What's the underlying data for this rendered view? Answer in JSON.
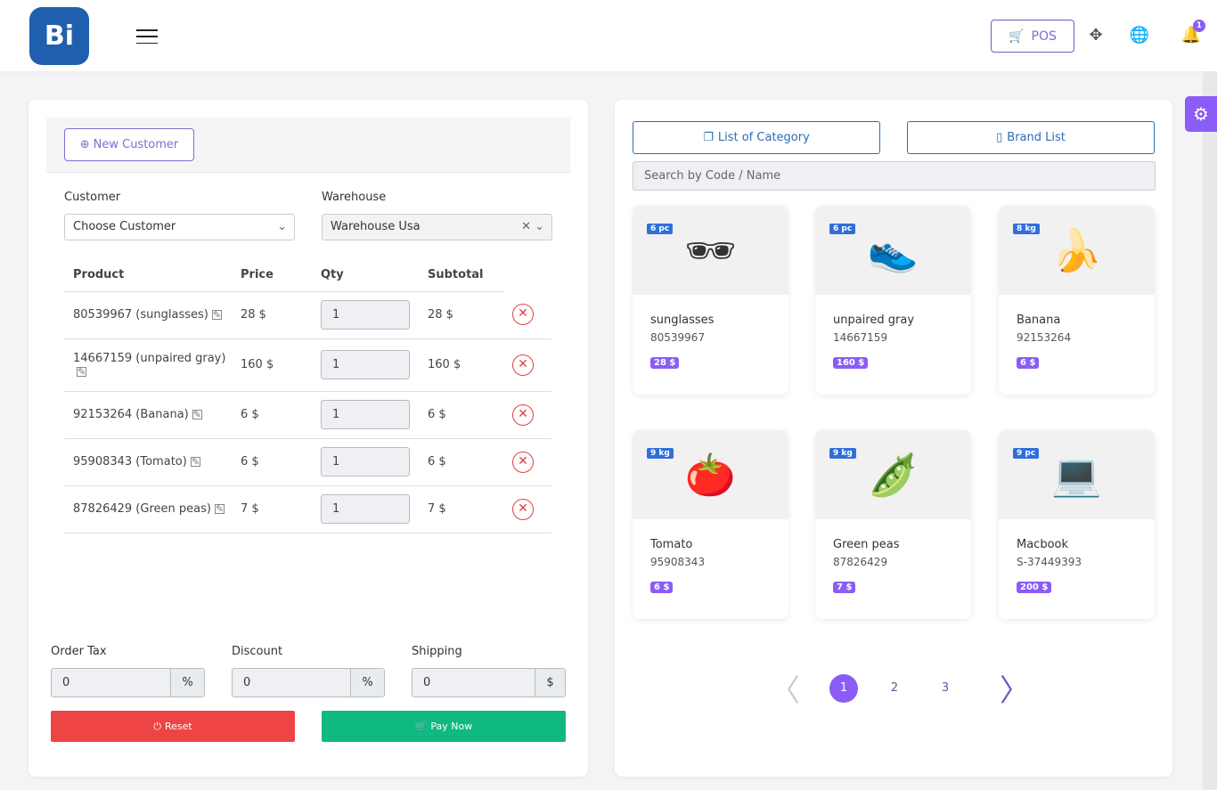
{
  "header": {
    "logo": "Bi",
    "pos_label": "POS",
    "notification_count": "1"
  },
  "left": {
    "new_customer": "New Customer",
    "customer_label": "Customer",
    "customer_value": "Choose Customer",
    "warehouse_label": "Warehouse",
    "warehouse_value": "Warehouse Usa",
    "columns": [
      "Product",
      "Price",
      "Qty",
      "Subtotal"
    ],
    "rows": [
      {
        "product": "80539967 (sunglasses)",
        "price": "28 $",
        "qty": "1",
        "subtotal": "28 $"
      },
      {
        "product": "14667159 (unpaired gray)",
        "price": "160 $",
        "qty": "1",
        "subtotal": "160 $"
      },
      {
        "product": "92153264 (Banana)",
        "price": "6 $",
        "qty": "1",
        "subtotal": "6 $"
      },
      {
        "product": "95908343 (Tomato)",
        "price": "6 $",
        "qty": "1",
        "subtotal": "6 $"
      },
      {
        "product": "87826429 (Green peas)",
        "price": "7 $",
        "qty": "1",
        "subtotal": "7 $"
      }
    ],
    "order_tax_label": "Order Tax",
    "order_tax": "0",
    "order_tax_unit": "%",
    "discount_label": "Discount",
    "discount": "0",
    "discount_unit": "%",
    "shipping_label": "Shipping",
    "shipping": "0",
    "shipping_unit": "$",
    "reset": "Reset",
    "pay_now": "Pay Now"
  },
  "right": {
    "category_button": "List of Category",
    "brand_button": "Brand List",
    "search_placeholder": "Search by Code / Name",
    "products": [
      {
        "name": "sunglasses",
        "code": "80539967",
        "price": "28 $",
        "stock": "6 pc",
        "icon": "🕶"
      },
      {
        "name": "unpaired gray",
        "code": "14667159",
        "price": "160 $",
        "stock": "6 pc",
        "icon": "👟"
      },
      {
        "name": "Banana",
        "code": "92153264",
        "price": "6 $",
        "stock": "8 kg",
        "icon": "🍌"
      },
      {
        "name": "Tomato",
        "code": "95908343",
        "price": "6 $",
        "stock": "9 kg",
        "icon": "🍅"
      },
      {
        "name": "Green peas",
        "code": "87826429",
        "price": "7 $",
        "stock": "9 kg",
        "icon": "🫛"
      },
      {
        "name": "Macbook",
        "code": "S-37449393",
        "price": "200 $",
        "stock": "9 pc",
        "icon": "💻"
      }
    ],
    "pages": [
      "1",
      "2",
      "3"
    ],
    "current_page": "1"
  },
  "colors": {
    "accent": "#8b5cf6",
    "reset": "#ef4444",
    "pay": "#10b981",
    "primary": "#2c6db3"
  }
}
